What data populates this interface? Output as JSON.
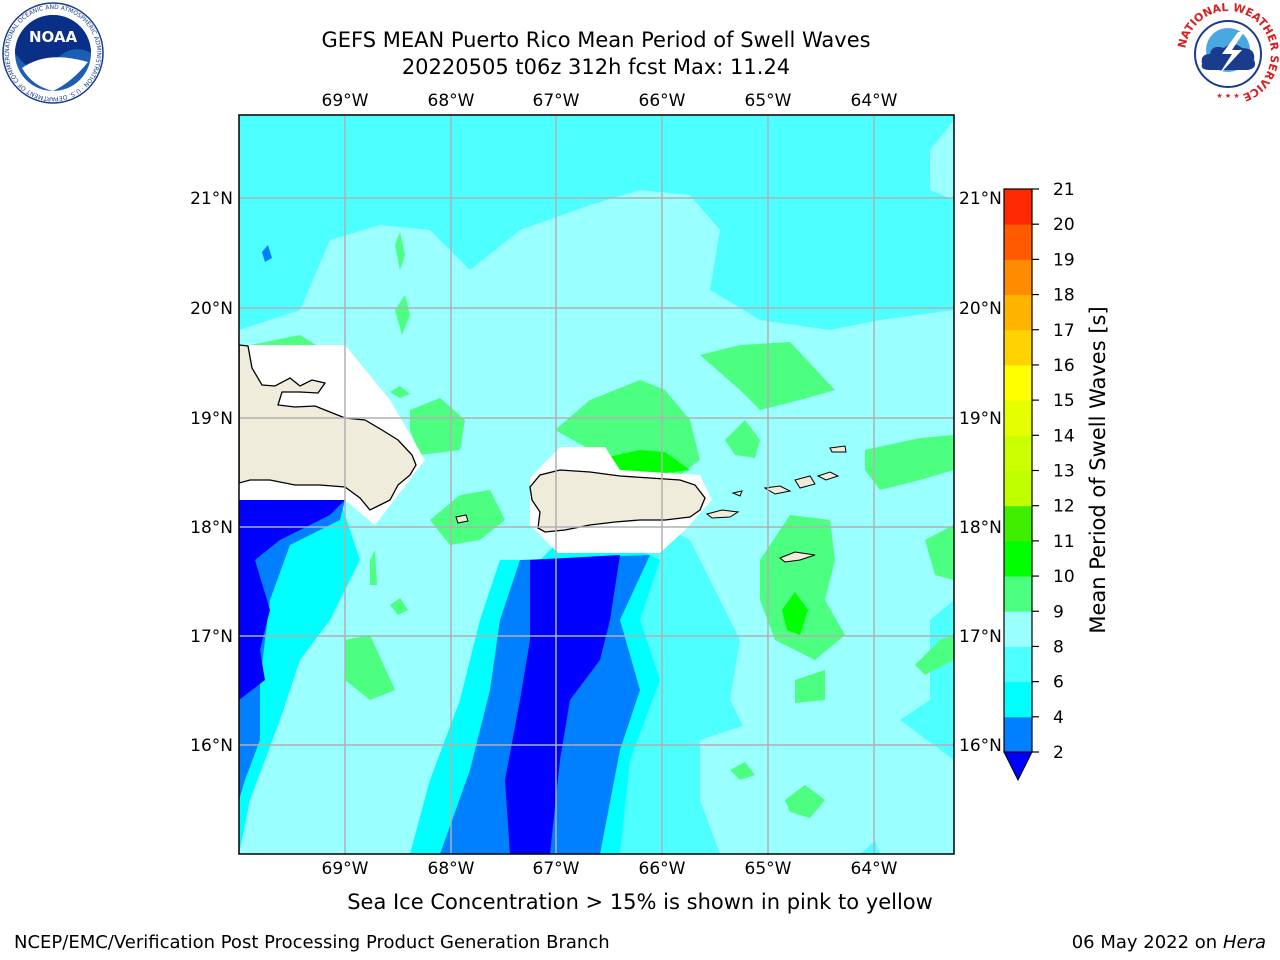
{
  "header": {
    "title_line1": "GEFS MEAN Puerto Rico Mean Period of Swell Waves",
    "title_line2": "20220505 t06z 312h fcst   Max: 11.24"
  },
  "logos": {
    "noaa_text": "NOAA",
    "noaa_ring": "NATIONAL OCEANIC AND ATMOSPHERIC ADMINISTRATION · U.S. DEPARTMENT OF COMMERCE",
    "nws_ring": "NATIONAL WEATHER SERVICE"
  },
  "map": {
    "lon_labels": [
      "69°W",
      "68°W",
      "67°W",
      "66°W",
      "65°W",
      "64°W"
    ],
    "lat_labels": [
      "21°N",
      "20°N",
      "19°N",
      "18°N",
      "17°N",
      "16°N"
    ],
    "land_color": "#efecdc",
    "ocean_base_color": "#4dffff"
  },
  "colorbar": {
    "label": "Mean Period of Swell Waves [s]",
    "ticks": [
      "2",
      "4",
      "6",
      "8",
      "9",
      "10",
      "11",
      "12",
      "13",
      "14",
      "15",
      "16",
      "17",
      "18",
      "19",
      "20",
      "21"
    ],
    "colors": [
      "#0000ff",
      "#0080ff",
      "#00ffff",
      "#4dffff",
      "#99ffff",
      "#4dff80",
      "#00ff00",
      "#40ee00",
      "#c0ff00",
      "#ccff00",
      "#e6ff00",
      "#ffff00",
      "#ffd200",
      "#ffb400",
      "#ff8c00",
      "#ff5a00",
      "#ff2800",
      "#ff0000"
    ]
  },
  "footer": {
    "note": "Sea Ice Concentration > 15% is shown in pink to yellow",
    "credit": "NCEP/EMC/Verification Post Processing Product Generation Branch",
    "date": "06 May 2022 on",
    "machine": "Hera"
  }
}
